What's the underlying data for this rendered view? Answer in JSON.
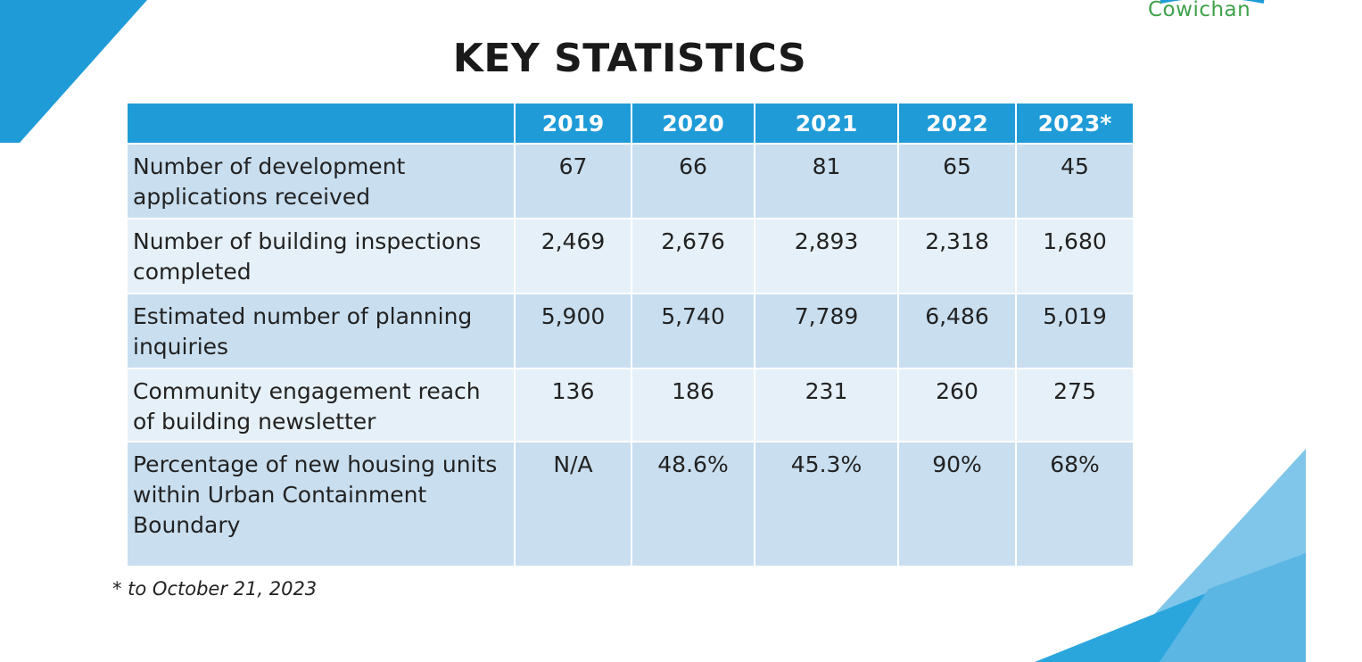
{
  "brand": {
    "logo_text": "Cowichan",
    "accent_color": "#1f9bd7",
    "logo_color": "#3fa14a"
  },
  "title": "KEY STATISTICS",
  "table": {
    "header": [
      "",
      "2019",
      "2020",
      "2021",
      "2022",
      "2023*"
    ],
    "rows": [
      {
        "label": "Number of development applications received",
        "values": [
          "67",
          "66",
          "81",
          "65",
          "45"
        ]
      },
      {
        "label": "Number of building inspections completed",
        "values": [
          "2,469",
          "2,676",
          "2,893",
          "2,318",
          "1,680"
        ]
      },
      {
        "label": "Estimated number of planning inquiries",
        "values": [
          "5,900",
          "5,740",
          "7,789",
          "6,486",
          "5,019"
        ]
      },
      {
        "label": "Community engagement reach of building newsletter",
        "values": [
          "136",
          "186",
          "231",
          "260",
          "275"
        ]
      },
      {
        "label": "Percentage of new housing units within Urban Containment Boundary",
        "values": [
          "N/A",
          "48.6%",
          "45.3%",
          "90%",
          "68%"
        ]
      }
    ]
  },
  "footnote": "* to October 21, 2023"
}
